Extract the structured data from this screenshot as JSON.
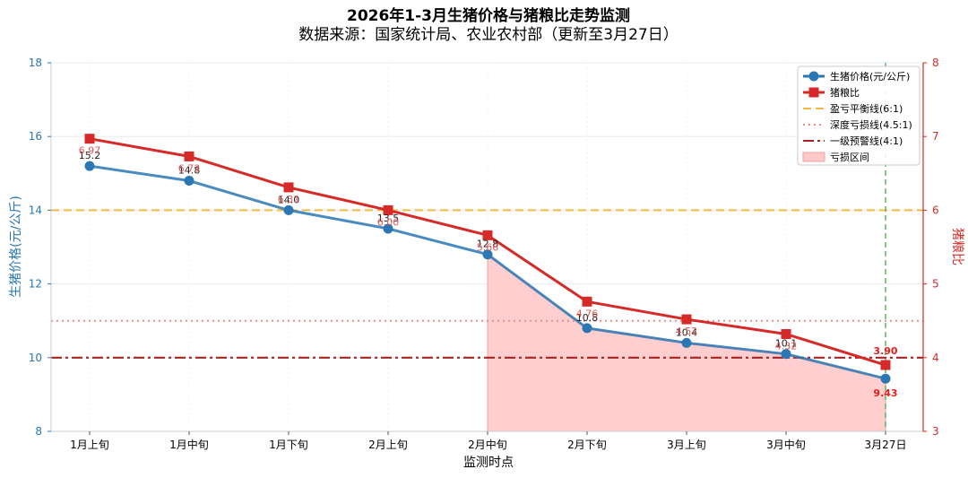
{
  "chart_data": {
    "type": "line",
    "title": "2026年1-3月生猪价格与猪粮比走势监测",
    "subtitle": "数据来源：国家统计局、农业农村部（更新至3月27日）",
    "xlabel": "监测时点",
    "ylabel_left": "生猪价格(元/公斤)",
    "ylabel_right": "猪粮比",
    "categories": [
      "1月上旬",
      "1月中旬",
      "1月下旬",
      "2月上旬",
      "2月中旬",
      "2月下旬",
      "3月上旬",
      "3月中旬",
      "3月27日"
    ],
    "ylim_left": [
      8,
      18
    ],
    "yticks_left": [
      "8",
      "10",
      "12",
      "14",
      "16",
      "18"
    ],
    "ylim_right": [
      3,
      8
    ],
    "yticks_right": [
      "3",
      "4",
      "5",
      "6",
      "7",
      "8"
    ],
    "grid": true,
    "legend_position": "top-right",
    "series": [
      {
        "name": "生猪价格(元/公斤)",
        "axis": "left",
        "marker": "circle",
        "color": "#2a77b4",
        "values": [
          15.2,
          14.8,
          14.0,
          13.5,
          12.8,
          10.8,
          10.4,
          10.1,
          9.43
        ],
        "labels": [
          "15.2",
          "14.8",
          "14.0",
          "13.5",
          "12.8",
          "10.8",
          "10.4",
          "10.1",
          "9.43"
        ]
      },
      {
        "name": "猪粮比",
        "axis": "right",
        "marker": "square",
        "color": "#d62a28",
        "values": [
          6.97,
          6.73,
          6.31,
          6.0,
          5.66,
          4.76,
          4.52,
          4.32,
          3.9
        ],
        "labels": [
          "6.97",
          "6.73",
          "6.31",
          "6.00",
          "5.66",
          "4.76",
          "4.52",
          "4.32",
          "3.90"
        ]
      }
    ],
    "reference_lines": [
      {
        "name": "盈亏平衡线(6:1)",
        "axis": "right",
        "value": 6,
        "color": "#f5b93f",
        "style": "dashed"
      },
      {
        "name": "深度亏损线(4.5:1)",
        "axis": "right",
        "value": 4.5,
        "color": "#f08a86",
        "style": "dotted"
      },
      {
        "name": "一级预警线(4:1)",
        "axis": "right",
        "value": 4,
        "color": "#a82424",
        "style": "dashdot"
      }
    ],
    "loss_region": {
      "name": "亏损区间",
      "from_index": 4,
      "to_index": 8,
      "color": "#ffc9c9"
    },
    "marker_line": {
      "index": 8,
      "label": "3月27日",
      "color": "#5cb85c"
    }
  }
}
